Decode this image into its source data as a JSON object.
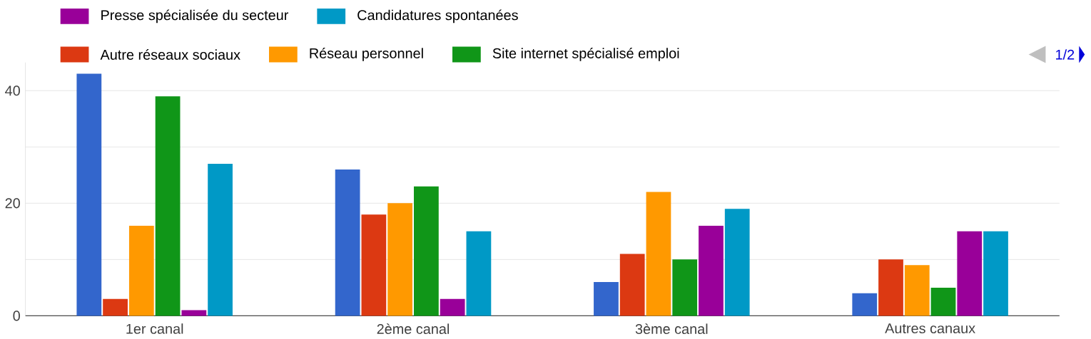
{
  "chart_data": {
    "type": "bar",
    "categories": [
      "1er canal",
      "2ème canal",
      "3ème canal",
      "Autres canaux"
    ],
    "series": [
      {
        "color": "#3366cc",
        "values": [
          43,
          26,
          6,
          4
        ]
      },
      {
        "name": "Autre réseaux sociaux",
        "color": "#dc3912",
        "values": [
          3,
          18,
          11,
          10
        ]
      },
      {
        "name": "Réseau personnel",
        "color": "#ff9900",
        "values": [
          16,
          20,
          22,
          9
        ]
      },
      {
        "name": "Site internet spécialisé emploi",
        "color": "#109618",
        "values": [
          39,
          23,
          10,
          5
        ]
      },
      {
        "name": "Presse spécialisée du secteur",
        "color": "#990099",
        "values": [
          1,
          3,
          16,
          15
        ]
      },
      {
        "name": "Candidatures spontanées",
        "color": "#0099c6",
        "values": [
          27,
          15,
          19,
          15
        ]
      }
    ],
    "ylim": [
      0,
      45
    ],
    "yticks": [
      0,
      {
        "value": 10,
        "label": null
      },
      20,
      {
        "value": 30,
        "label": null
      },
      40
    ],
    "grid": "y",
    "legend": "top",
    "annotations": [
      "1/2"
    ]
  }
}
